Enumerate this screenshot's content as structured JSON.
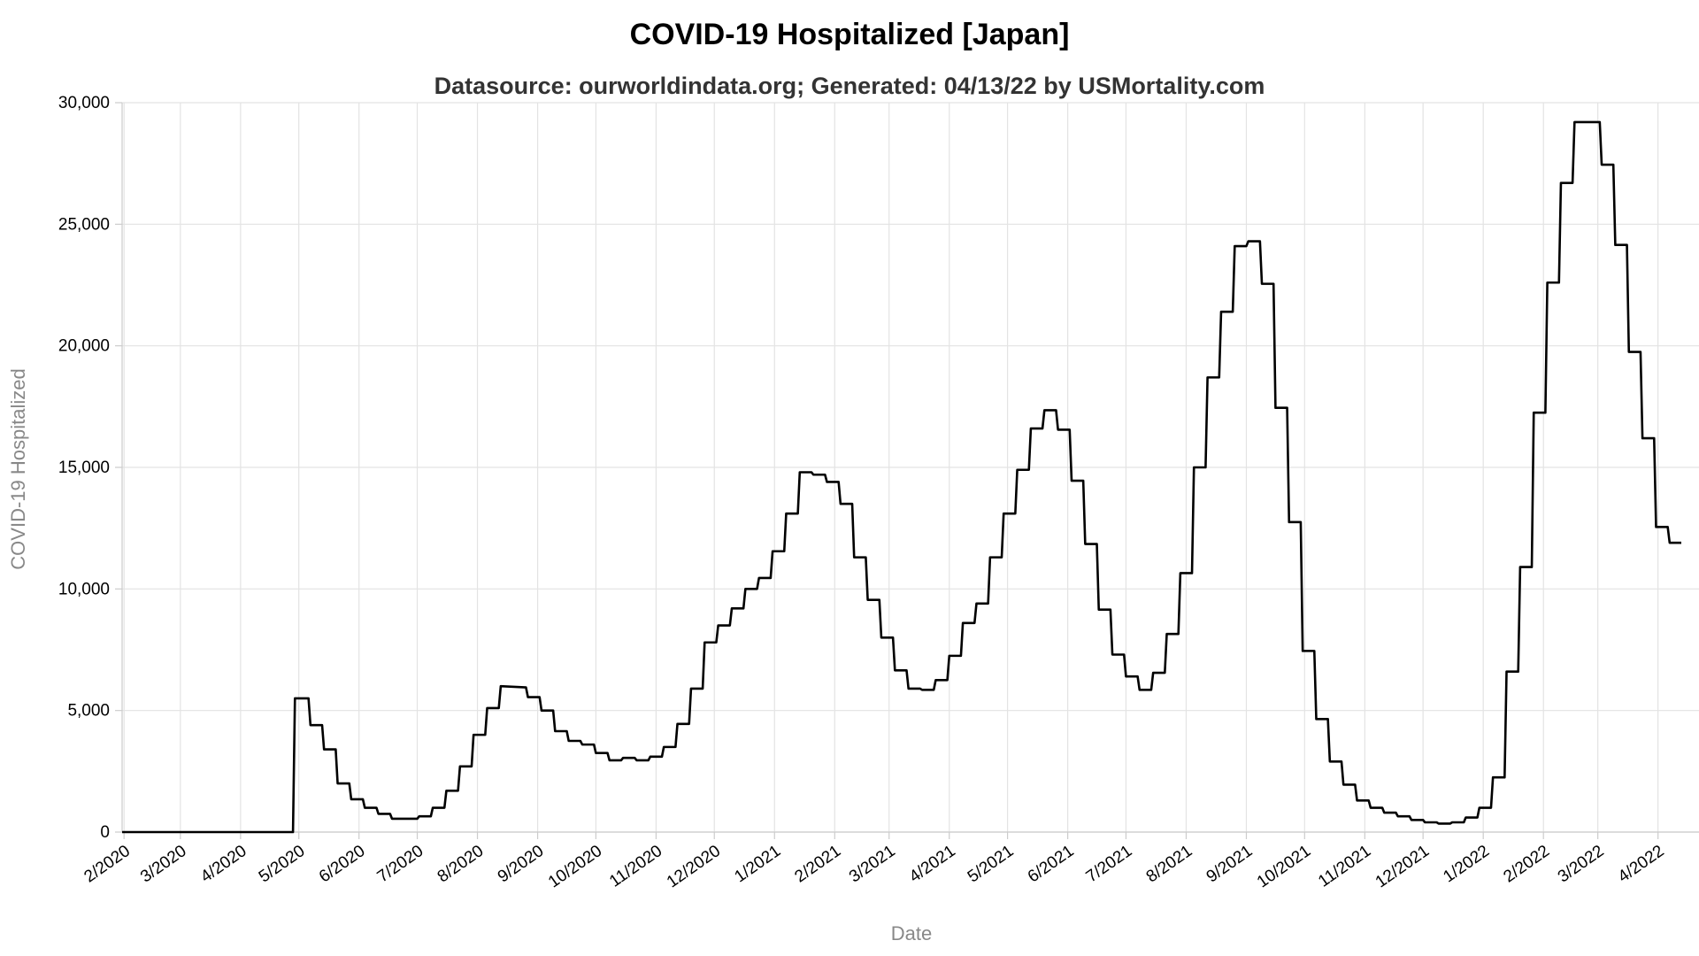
{
  "chart_data": {
    "type": "line",
    "title": "COVID-19 Hospitalized [Japan]",
    "subtitle": "Datasource: ourworldindata.org; Generated: 04/13/22 by USMortality.com",
    "xlabel": "Date",
    "ylabel": "COVID-19 Hospitalized",
    "ylim": [
      0,
      30000
    ],
    "yticks": [
      0,
      5000,
      10000,
      15000,
      20000,
      25000,
      30000
    ],
    "ytick_labels": [
      "0",
      "5,000",
      "10,000",
      "15,000",
      "20,000",
      "25,000",
      "30,000"
    ],
    "xlim": [
      "2020-01-31",
      "2022-04-13"
    ],
    "xtick_labels": [
      "2/2020",
      "3/2020",
      "4/2020",
      "5/2020",
      "6/2020",
      "7/2020",
      "8/2020",
      "9/2020",
      "10/2020",
      "11/2020",
      "12/2020",
      "1/2021",
      "2/2021",
      "3/2021",
      "4/2021",
      "5/2021",
      "6/2021",
      "7/2021",
      "8/2021",
      "9/2021",
      "10/2021",
      "11/2021",
      "12/2021",
      "1/2022",
      "2/2022",
      "3/2022",
      "4/2022"
    ],
    "xtick_dates": [
      "2020-02-01",
      "2020-03-01",
      "2020-04-01",
      "2020-05-01",
      "2020-06-01",
      "2020-07-01",
      "2020-08-01",
      "2020-09-01",
      "2020-10-01",
      "2020-11-01",
      "2020-12-01",
      "2021-01-01",
      "2021-02-01",
      "2021-03-01",
      "2021-04-01",
      "2021-05-01",
      "2021-06-01",
      "2021-07-01",
      "2021-08-01",
      "2021-09-01",
      "2021-10-01",
      "2021-11-01",
      "2021-12-01",
      "2022-01-01",
      "2022-02-01",
      "2022-03-01",
      "2022-04-01"
    ],
    "grid": true,
    "legend": "none",
    "line_color": "#000000",
    "step": true,
    "series": [
      {
        "values": [
          [
            "2020-01-31",
            0
          ],
          [
            "2020-04-28",
            0
          ],
          [
            "2020-04-29",
            5500
          ],
          [
            "2020-05-06",
            5500
          ],
          [
            "2020-05-07",
            4400
          ],
          [
            "2020-05-13",
            4400
          ],
          [
            "2020-05-14",
            3400
          ],
          [
            "2020-05-20",
            3400
          ],
          [
            "2020-05-21",
            2000
          ],
          [
            "2020-05-27",
            2000
          ],
          [
            "2020-05-28",
            1350
          ],
          [
            "2020-06-03",
            1350
          ],
          [
            "2020-06-04",
            1000
          ],
          [
            "2020-06-10",
            1000
          ],
          [
            "2020-06-11",
            750
          ],
          [
            "2020-06-17",
            750
          ],
          [
            "2020-06-18",
            550
          ],
          [
            "2020-07-01",
            550
          ],
          [
            "2020-07-02",
            650
          ],
          [
            "2020-07-08",
            650
          ],
          [
            "2020-07-09",
            1000
          ],
          [
            "2020-07-15",
            1000
          ],
          [
            "2020-07-16",
            1700
          ],
          [
            "2020-07-22",
            1700
          ],
          [
            "2020-07-23",
            2700
          ],
          [
            "2020-07-29",
            2700
          ],
          [
            "2020-07-30",
            4000
          ],
          [
            "2020-08-05",
            4000
          ],
          [
            "2020-08-06",
            5100
          ],
          [
            "2020-08-12",
            5100
          ],
          [
            "2020-08-13",
            6000
          ],
          [
            "2020-08-26",
            5950
          ],
          [
            "2020-08-27",
            5550
          ],
          [
            "2020-09-02",
            5550
          ],
          [
            "2020-09-03",
            5000
          ],
          [
            "2020-09-09",
            5000
          ],
          [
            "2020-09-10",
            4150
          ],
          [
            "2020-09-16",
            4150
          ],
          [
            "2020-09-17",
            3750
          ],
          [
            "2020-09-23",
            3750
          ],
          [
            "2020-09-24",
            3600
          ],
          [
            "2020-09-30",
            3600
          ],
          [
            "2020-10-01",
            3250
          ],
          [
            "2020-10-07",
            3250
          ],
          [
            "2020-10-08",
            2950
          ],
          [
            "2020-10-14",
            2950
          ],
          [
            "2020-10-15",
            3050
          ],
          [
            "2020-10-21",
            3050
          ],
          [
            "2020-10-22",
            2950
          ],
          [
            "2020-10-28",
            2950
          ],
          [
            "2020-10-29",
            3100
          ],
          [
            "2020-11-04",
            3100
          ],
          [
            "2020-11-05",
            3500
          ],
          [
            "2020-11-11",
            3500
          ],
          [
            "2020-11-12",
            4450
          ],
          [
            "2020-11-18",
            4450
          ],
          [
            "2020-11-19",
            5900
          ],
          [
            "2020-11-25",
            5900
          ],
          [
            "2020-11-26",
            7800
          ],
          [
            "2020-12-02",
            7800
          ],
          [
            "2020-12-03",
            8500
          ],
          [
            "2020-12-09",
            8500
          ],
          [
            "2020-12-10",
            9200
          ],
          [
            "2020-12-16",
            9200
          ],
          [
            "2020-12-17",
            10000
          ],
          [
            "2020-12-23",
            10000
          ],
          [
            "2020-12-24",
            10450
          ],
          [
            "2020-12-30",
            10450
          ],
          [
            "2020-12-31",
            11550
          ],
          [
            "2021-01-06",
            11550
          ],
          [
            "2021-01-07",
            13100
          ],
          [
            "2021-01-13",
            13100
          ],
          [
            "2021-01-14",
            14800
          ],
          [
            "2021-01-20",
            14800
          ],
          [
            "2021-01-21",
            14700
          ],
          [
            "2021-01-27",
            14700
          ],
          [
            "2021-01-28",
            14400
          ],
          [
            "2021-02-03",
            14400
          ],
          [
            "2021-02-04",
            13500
          ],
          [
            "2021-02-10",
            13500
          ],
          [
            "2021-02-11",
            11300
          ],
          [
            "2021-02-17",
            11300
          ],
          [
            "2021-02-18",
            9550
          ],
          [
            "2021-02-24",
            9550
          ],
          [
            "2021-02-25",
            8000
          ],
          [
            "2021-03-03",
            8000
          ],
          [
            "2021-03-04",
            6650
          ],
          [
            "2021-03-10",
            6650
          ],
          [
            "2021-03-11",
            5900
          ],
          [
            "2021-03-17",
            5900
          ],
          [
            "2021-03-18",
            5850
          ],
          [
            "2021-03-24",
            5850
          ],
          [
            "2021-03-25",
            6250
          ],
          [
            "2021-03-31",
            6250
          ],
          [
            "2021-04-01",
            7250
          ],
          [
            "2021-04-07",
            7250
          ],
          [
            "2021-04-08",
            8600
          ],
          [
            "2021-04-14",
            8600
          ],
          [
            "2021-04-15",
            9400
          ],
          [
            "2021-04-21",
            9400
          ],
          [
            "2021-04-22",
            11300
          ],
          [
            "2021-04-28",
            11300
          ],
          [
            "2021-04-29",
            13100
          ],
          [
            "2021-05-05",
            13100
          ],
          [
            "2021-05-06",
            14900
          ],
          [
            "2021-05-12",
            14900
          ],
          [
            "2021-05-13",
            16600
          ],
          [
            "2021-05-19",
            16600
          ],
          [
            "2021-05-20",
            17350
          ],
          [
            "2021-05-26",
            17350
          ],
          [
            "2021-05-27",
            16550
          ],
          [
            "2021-06-02",
            16550
          ],
          [
            "2021-06-03",
            14450
          ],
          [
            "2021-06-09",
            14450
          ],
          [
            "2021-06-10",
            11850
          ],
          [
            "2021-06-16",
            11850
          ],
          [
            "2021-06-17",
            9150
          ],
          [
            "2021-06-23",
            9150
          ],
          [
            "2021-06-24",
            7300
          ],
          [
            "2021-06-30",
            7300
          ],
          [
            "2021-07-01",
            6400
          ],
          [
            "2021-07-07",
            6400
          ],
          [
            "2021-07-08",
            5850
          ],
          [
            "2021-07-14",
            5850
          ],
          [
            "2021-07-15",
            6550
          ],
          [
            "2021-07-21",
            6550
          ],
          [
            "2021-07-22",
            8150
          ],
          [
            "2021-07-28",
            8150
          ],
          [
            "2021-07-29",
            10650
          ],
          [
            "2021-08-04",
            10650
          ],
          [
            "2021-08-05",
            15000
          ],
          [
            "2021-08-11",
            15000
          ],
          [
            "2021-08-12",
            18700
          ],
          [
            "2021-08-18",
            18700
          ],
          [
            "2021-08-19",
            21400
          ],
          [
            "2021-08-25",
            21400
          ],
          [
            "2021-08-26",
            24100
          ],
          [
            "2021-09-01",
            24100
          ],
          [
            "2021-09-02",
            24300
          ],
          [
            "2021-09-08",
            24300
          ],
          [
            "2021-09-09",
            22550
          ],
          [
            "2021-09-15",
            22550
          ],
          [
            "2021-09-16",
            17450
          ],
          [
            "2021-09-22",
            17450
          ],
          [
            "2021-09-23",
            12750
          ],
          [
            "2021-09-29",
            12750
          ],
          [
            "2021-09-30",
            7450
          ],
          [
            "2021-10-06",
            7450
          ],
          [
            "2021-10-07",
            4650
          ],
          [
            "2021-10-13",
            4650
          ],
          [
            "2021-10-14",
            2900
          ],
          [
            "2021-10-20",
            2900
          ],
          [
            "2021-10-21",
            1950
          ],
          [
            "2021-10-27",
            1950
          ],
          [
            "2021-10-28",
            1300
          ],
          [
            "2021-11-03",
            1300
          ],
          [
            "2021-11-04",
            1000
          ],
          [
            "2021-11-10",
            1000
          ],
          [
            "2021-11-11",
            800
          ],
          [
            "2021-11-17",
            800
          ],
          [
            "2021-11-18",
            650
          ],
          [
            "2021-11-24",
            650
          ],
          [
            "2021-11-25",
            500
          ],
          [
            "2021-12-01",
            500
          ],
          [
            "2021-12-02",
            400
          ],
          [
            "2021-12-08",
            400
          ],
          [
            "2021-12-09",
            350
          ],
          [
            "2021-12-15",
            350
          ],
          [
            "2021-12-16",
            400
          ],
          [
            "2021-12-22",
            400
          ],
          [
            "2021-12-23",
            600
          ],
          [
            "2021-12-29",
            600
          ],
          [
            "2021-12-30",
            1000
          ],
          [
            "2022-01-05",
            1000
          ],
          [
            "2022-01-06",
            2250
          ],
          [
            "2022-01-12",
            2250
          ],
          [
            "2022-01-13",
            6600
          ],
          [
            "2022-01-19",
            6600
          ],
          [
            "2022-01-20",
            10900
          ],
          [
            "2022-01-26",
            10900
          ],
          [
            "2022-01-27",
            17250
          ],
          [
            "2022-02-02",
            17250
          ],
          [
            "2022-02-03",
            22600
          ],
          [
            "2022-02-09",
            22600
          ],
          [
            "2022-02-10",
            26700
          ],
          [
            "2022-02-16",
            26700
          ],
          [
            "2022-02-17",
            29200
          ],
          [
            "2022-03-02",
            29200
          ],
          [
            "2022-03-03",
            27450
          ],
          [
            "2022-03-09",
            27450
          ],
          [
            "2022-03-10",
            24150
          ],
          [
            "2022-03-16",
            24150
          ],
          [
            "2022-03-17",
            19750
          ],
          [
            "2022-03-23",
            19750
          ],
          [
            "2022-03-24",
            16200
          ],
          [
            "2022-03-30",
            16200
          ],
          [
            "2022-03-31",
            12550
          ],
          [
            "2022-04-06",
            12550
          ],
          [
            "2022-04-07",
            11900
          ],
          [
            "2022-04-13",
            11900
          ]
        ]
      }
    ]
  }
}
